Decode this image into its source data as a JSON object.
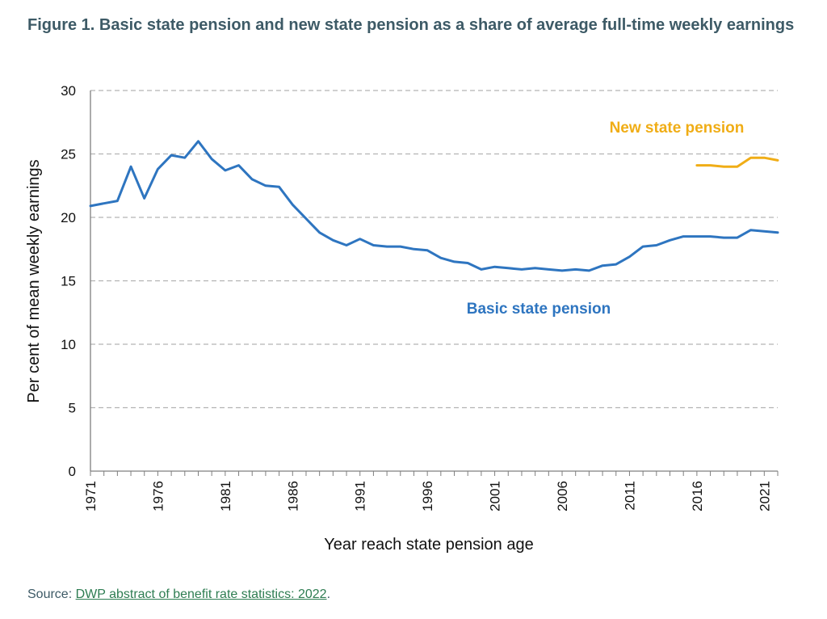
{
  "figure": {
    "title": "Figure 1. Basic state pension and new state pension as a share of average full-time weekly earnings"
  },
  "source": {
    "prefix": "Source: ",
    "link_text": "DWP abstract of benefit rate statistics: 2022",
    "suffix": "."
  },
  "colors": {
    "title": "#3d5a66",
    "basic": "#2e75c0",
    "new": "#f0ad16",
    "grid": "#b3b3b3",
    "axis": "#7f7f7f",
    "link": "#2e7d52"
  },
  "chart_data": {
    "type": "line",
    "xlabel": "Year reach state pension age",
    "ylabel": "Per cent of mean weekly earnings",
    "xlim": [
      1971,
      2022
    ],
    "ylim": [
      0,
      30
    ],
    "yticks": [
      0,
      5,
      10,
      15,
      20,
      25,
      30
    ],
    "xtick_labels": [
      "1971",
      "1976",
      "1981",
      "1986",
      "1991",
      "1996",
      "2001",
      "2006",
      "2011",
      "2016",
      "2021"
    ],
    "grid": "horizontal dashed",
    "series": [
      {
        "name": "Basic state pension",
        "color": "#2e75c0",
        "x": [
          1971,
          1972,
          1973,
          1974,
          1975,
          1976,
          1977,
          1978,
          1979,
          1980,
          1981,
          1982,
          1983,
          1984,
          1985,
          1986,
          1987,
          1988,
          1989,
          1990,
          1991,
          1992,
          1993,
          1994,
          1995,
          1996,
          1997,
          1998,
          1999,
          2000,
          2001,
          2002,
          2003,
          2004,
          2005,
          2006,
          2007,
          2008,
          2009,
          2010,
          2011,
          2012,
          2013,
          2014,
          2015,
          2016,
          2017,
          2018,
          2019,
          2020,
          2021,
          2022
        ],
        "y": [
          20.9,
          21.1,
          21.3,
          24.0,
          21.5,
          23.8,
          24.9,
          24.7,
          26.0,
          24.6,
          23.7,
          24.1,
          23.0,
          22.5,
          22.4,
          21.0,
          19.9,
          18.8,
          18.2,
          17.8,
          18.3,
          17.8,
          17.7,
          17.7,
          17.5,
          17.4,
          16.8,
          16.5,
          16.4,
          15.9,
          16.1,
          16.0,
          15.9,
          16.0,
          15.9,
          15.8,
          15.9,
          15.8,
          16.2,
          16.3,
          16.9,
          17.7,
          17.8,
          18.2,
          18.5,
          18.5,
          18.5,
          18.4,
          18.4,
          19.0,
          18.9,
          18.8
        ]
      },
      {
        "name": "New state pension",
        "color": "#f0ad16",
        "x": [
          2016,
          2017,
          2018,
          2019,
          2020,
          2021,
          2022
        ],
        "y": [
          24.1,
          24.1,
          24.0,
          24.0,
          24.7,
          24.7,
          24.5
        ]
      }
    ]
  }
}
